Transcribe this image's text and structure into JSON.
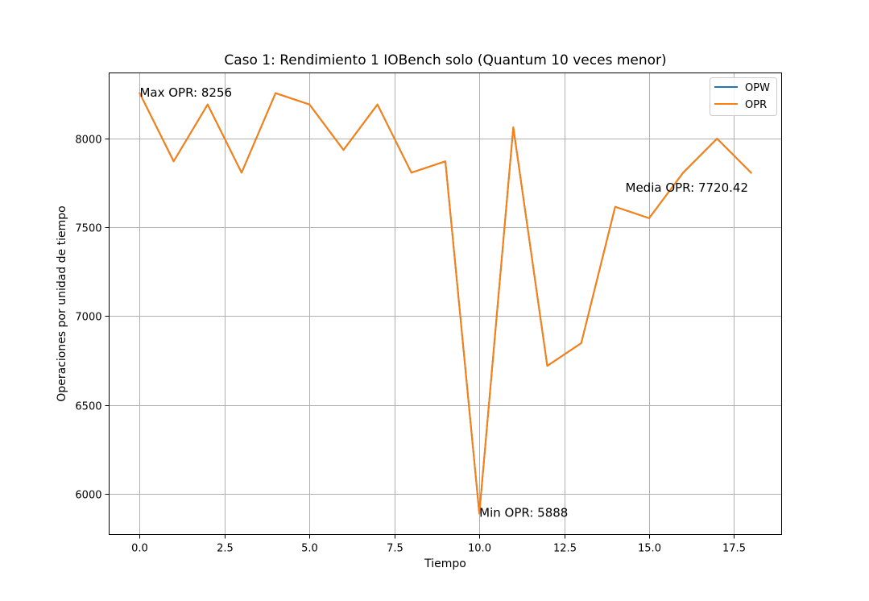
{
  "chart_data": {
    "type": "line",
    "title": "Caso 1: Rendimiento 1 IOBench solo (Quantum 10 veces menor)",
    "xlabel": "Tiempo",
    "ylabel": "Operaciones por unidad de tiempo",
    "xlim": [
      -0.9,
      18.9
    ],
    "ylim": [
      5770,
      8370
    ],
    "grid": true,
    "legend_position": "top-right",
    "x_ticks": [
      0,
      2.5,
      5,
      7.5,
      10,
      12.5,
      15,
      17.5
    ],
    "x_tick_labels": [
      "0.0",
      "2.5",
      "5.0",
      "7.5",
      "10.0",
      "12.5",
      "15.0",
      "17.5"
    ],
    "y_ticks": [
      6000,
      6500,
      7000,
      7500,
      8000
    ],
    "y_tick_labels": [
      "6000",
      "6500",
      "7000",
      "7500",
      "8000"
    ],
    "x": [
      0,
      1,
      2,
      3,
      4,
      5,
      6,
      7,
      8,
      9,
      10,
      11,
      12,
      13,
      14,
      15,
      16,
      17,
      18
    ],
    "series": [
      {
        "name": "OPW",
        "color": "#1f77b4",
        "values": [
          8256,
          7872,
          8192,
          7808,
          8256,
          8192,
          7936,
          8192,
          7808,
          7872,
          5888,
          8064,
          6720,
          6848,
          7616,
          7552,
          7808,
          8000,
          7808
        ]
      },
      {
        "name": "OPR",
        "color": "#ff7f0e",
        "values": [
          8256,
          7872,
          8192,
          7808,
          8256,
          8192,
          7936,
          8192,
          7808,
          7872,
          5888,
          8064,
          6720,
          6848,
          7616,
          7552,
          7808,
          8000,
          7808
        ]
      }
    ],
    "annotations": [
      {
        "text": "Max OPR: 8256",
        "x": 0,
        "y": 8256
      },
      {
        "text": "Min OPR: 5888",
        "x": 10,
        "y": 5888
      },
      {
        "text": "Media OPR: 7720.42",
        "x": 14.3,
        "y": 7720.42
      }
    ]
  }
}
